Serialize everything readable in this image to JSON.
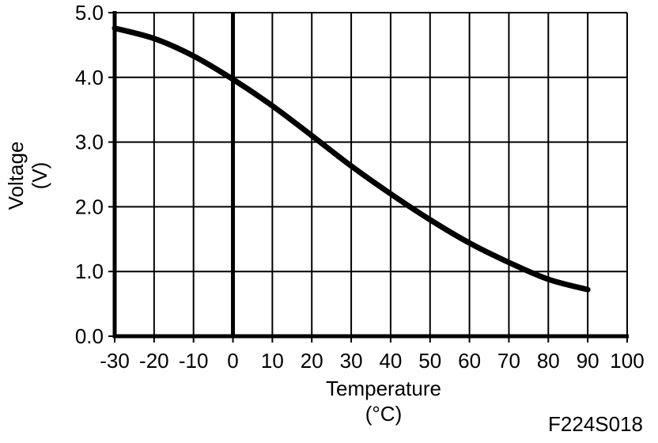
{
  "chart_data": {
    "type": "line",
    "title": "",
    "xlabel": "Temperature",
    "xlabel_unit": "(°C)",
    "ylabel": "Voltage",
    "ylabel_unit": "(V)",
    "xlim": [
      -30,
      100
    ],
    "ylim": [
      0,
      5
    ],
    "grid": true,
    "x_ticks": [
      "-30",
      "-20",
      "-10",
      "0",
      "10",
      "20",
      "30",
      "40",
      "50",
      "60",
      "70",
      "80",
      "90",
      "100"
    ],
    "y_ticks": [
      "0.0",
      "1.0",
      "2.0",
      "3.0",
      "4.0",
      "5.0"
    ],
    "series": [
      {
        "x": [
          -30,
          -20,
          -10,
          0,
          10,
          20,
          30,
          40,
          50,
          60,
          70,
          80,
          90
        ],
        "y": [
          4.76,
          4.6,
          4.33,
          3.97,
          3.56,
          3.1,
          2.63,
          2.2,
          1.8,
          1.44,
          1.14,
          0.88,
          0.72
        ]
      }
    ],
    "figure_code": "F224S018"
  }
}
